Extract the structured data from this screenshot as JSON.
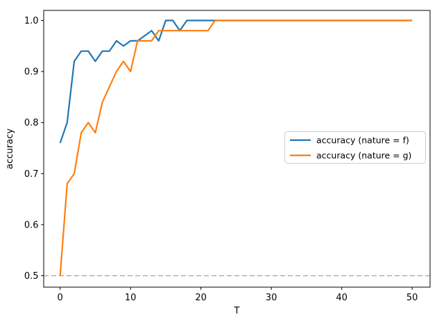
{
  "chart_data": {
    "type": "line",
    "title": "",
    "xlabel": "T",
    "ylabel": "accuracy",
    "xlim": [
      -2.5,
      52.5
    ],
    "ylim": [
      0.476,
      1.02
    ],
    "x_ticks": [
      0,
      10,
      20,
      30,
      40,
      50
    ],
    "y_ticks": [
      0.5,
      0.6,
      0.7,
      0.8,
      0.9,
      1.0
    ],
    "grid": false,
    "legend_position": "center right",
    "x": [
      0,
      1,
      2,
      3,
      4,
      5,
      6,
      7,
      8,
      9,
      10,
      11,
      12,
      13,
      14,
      15,
      16,
      17,
      18,
      19,
      20,
      21,
      22,
      23,
      24,
      25,
      26,
      27,
      28,
      29,
      30,
      31,
      32,
      33,
      34,
      35,
      36,
      37,
      38,
      39,
      40,
      41,
      42,
      43,
      44,
      45,
      46,
      47,
      48,
      49,
      50
    ],
    "series": [
      {
        "name": "accuracy (nature = f)",
        "color": "#1f77b4",
        "values": [
          0.76,
          0.8,
          0.92,
          0.94,
          0.94,
          0.92,
          0.94,
          0.94,
          0.96,
          0.95,
          0.96,
          0.96,
          0.97,
          0.98,
          0.96,
          1.0,
          1.0,
          0.98,
          1.0,
          1.0,
          1.0,
          1.0,
          1.0,
          1.0,
          1.0,
          1.0,
          1.0,
          1.0,
          1.0,
          1.0,
          1.0,
          1.0,
          1.0,
          1.0,
          1.0,
          1.0,
          1.0,
          1.0,
          1.0,
          1.0,
          1.0,
          1.0,
          1.0,
          1.0,
          1.0,
          1.0,
          1.0,
          1.0,
          1.0,
          1.0,
          1.0
        ]
      },
      {
        "name": "accuracy (nature = g)",
        "color": "#ff7f0e",
        "values": [
          0.5,
          0.68,
          0.7,
          0.78,
          0.8,
          0.78,
          0.84,
          0.87,
          0.9,
          0.92,
          0.9,
          0.96,
          0.96,
          0.96,
          0.98,
          0.98,
          0.98,
          0.98,
          0.98,
          0.98,
          0.98,
          0.98,
          1.0,
          1.0,
          1.0,
          1.0,
          1.0,
          1.0,
          1.0,
          1.0,
          1.0,
          1.0,
          1.0,
          1.0,
          1.0,
          1.0,
          1.0,
          1.0,
          1.0,
          1.0,
          1.0,
          1.0,
          1.0,
          1.0,
          1.0,
          1.0,
          1.0,
          1.0,
          1.0,
          1.0,
          1.0
        ]
      }
    ],
    "reference_line": {
      "y": 0.5,
      "style": "dashed",
      "color": "#b0b0b0"
    }
  },
  "colors": {
    "background": "#ffffff",
    "spine": "#000000",
    "tick": "#000000",
    "legend_border": "#cccccc",
    "legend_bg": "#ffffff"
  }
}
